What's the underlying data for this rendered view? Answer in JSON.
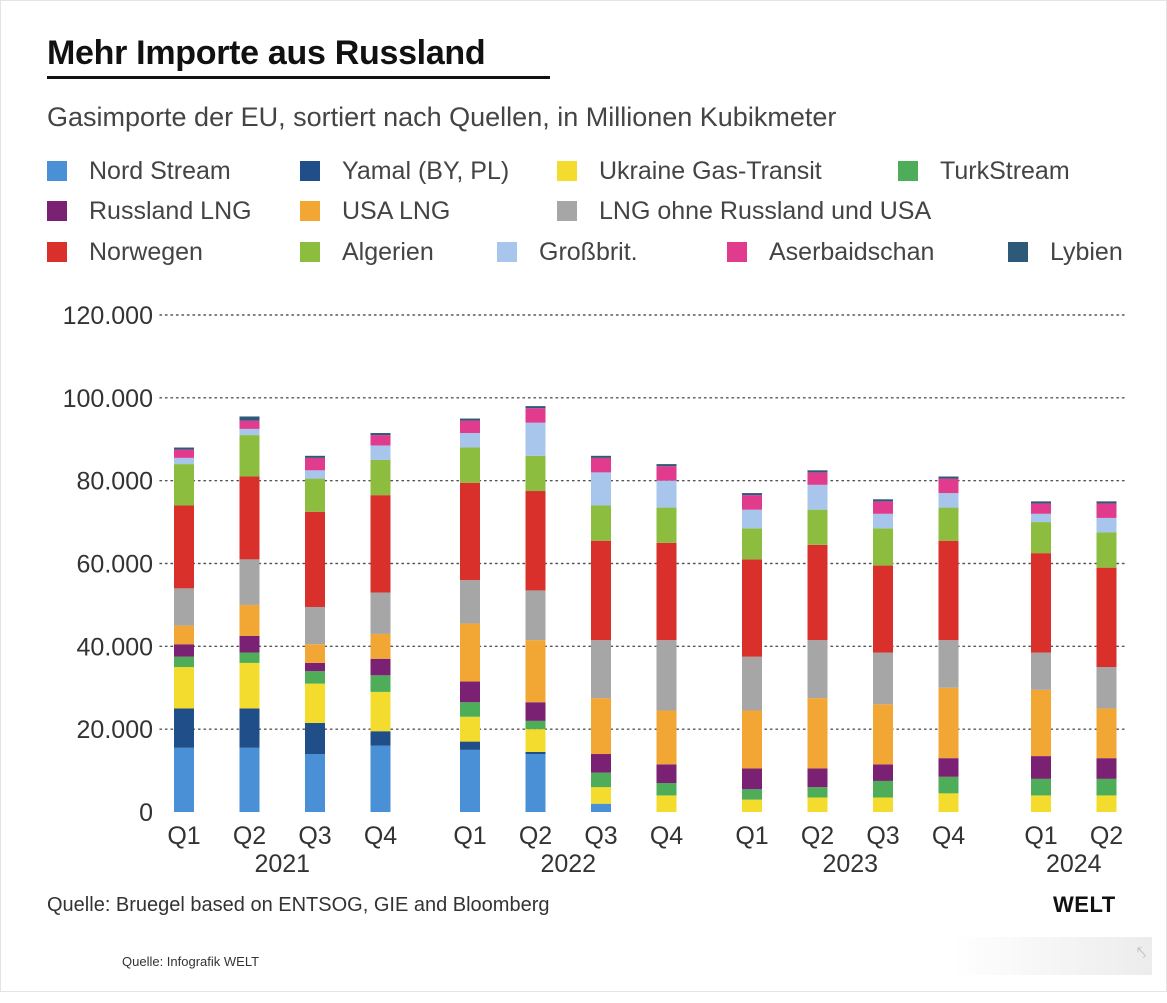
{
  "header": {
    "title": "Mehr Importe aus Russland",
    "subtitle": "Gasimporte der EU, sortiert nach Quellen, in Millionen Kubikmeter"
  },
  "legend": [
    {
      "label": "Nord Stream",
      "color": "#4a90d6"
    },
    {
      "label": "Yamal (BY, PL)",
      "color": "#1f4e88"
    },
    {
      "label": "Ukraine Gas-Transit",
      "color": "#f4dc2e"
    },
    {
      "label": "TurkStream",
      "color": "#4dad58"
    },
    {
      "label": "Russland LNG",
      "color": "#7b2173"
    },
    {
      "label": "USA LNG",
      "color": "#f2a634"
    },
    {
      "label": "LNG ohne Russland und USA",
      "color": "#a6a6a6"
    },
    {
      "label": "Norwegen",
      "color": "#d9302c"
    },
    {
      "label": "Algerien",
      "color": "#8cbd3f"
    },
    {
      "label": "Großbrit.",
      "color": "#a8c5ec"
    },
    {
      "label": "Aserbaidschan",
      "color": "#e13b8e"
    },
    {
      "label": "Lybien",
      "color": "#2d5a78"
    }
  ],
  "chart_data": {
    "type": "bar",
    "stacked": true,
    "title": "Mehr Importe aus Russland",
    "subtitle": "Gasimporte der EU, sortiert nach Quellen, in Millionen Kubikmeter",
    "xlabel": "",
    "ylabel": "",
    "ylim": [
      0,
      120000
    ],
    "y_ticks": [
      0,
      20000,
      40000,
      60000,
      80000,
      100000,
      120000
    ],
    "y_tick_labels": [
      "0",
      "20.000",
      "40.000",
      "60.000",
      "80.000",
      "100.000",
      "120.000"
    ],
    "grid": true,
    "legend_position": "top",
    "groups": [
      {
        "year": "2021",
        "quarters": [
          "Q1",
          "Q2",
          "Q3",
          "Q4"
        ]
      },
      {
        "year": "2022",
        "quarters": [
          "Q1",
          "Q2",
          "Q3",
          "Q4"
        ]
      },
      {
        "year": "2023",
        "quarters": [
          "Q1",
          "Q2",
          "Q3",
          "Q4"
        ]
      },
      {
        "year": "2024",
        "quarters": [
          "Q1",
          "Q2"
        ]
      }
    ],
    "categories": [
      "Q1 2021",
      "Q2 2021",
      "Q3 2021",
      "Q4 2021",
      "Q1 2022",
      "Q2 2022",
      "Q3 2022",
      "Q4 2022",
      "Q1 2023",
      "Q2 2023",
      "Q3 2023",
      "Q4 2023",
      "Q1 2024",
      "Q2 2024"
    ],
    "series": [
      {
        "name": "Nord Stream",
        "values": [
          15500,
          15500,
          14000,
          16000,
          15000,
          14000,
          2000,
          0,
          0,
          0,
          0,
          0,
          0,
          0
        ]
      },
      {
        "name": "Yamal (BY, PL)",
        "values": [
          9500,
          9500,
          7500,
          3500,
          2000,
          500,
          0,
          0,
          0,
          0,
          0,
          0,
          0,
          0
        ]
      },
      {
        "name": "Ukraine Gas-Transit",
        "values": [
          10000,
          11000,
          9500,
          9500,
          6000,
          5500,
          4000,
          4000,
          3000,
          3500,
          3500,
          4500,
          4000,
          4000
        ]
      },
      {
        "name": "TurkStream",
        "values": [
          2500,
          2500,
          3000,
          4000,
          3500,
          2000,
          3500,
          3000,
          2500,
          2500,
          4000,
          4000,
          4000,
          4000
        ]
      },
      {
        "name": "Russland LNG",
        "values": [
          3000,
          4000,
          2000,
          4000,
          5000,
          4500,
          4500,
          4500,
          5000,
          4500,
          4000,
          4500,
          5500,
          5000
        ]
      },
      {
        "name": "USA LNG",
        "values": [
          4500,
          7500,
          4500,
          6000,
          14000,
          15000,
          13500,
          13000,
          14000,
          17000,
          14500,
          17000,
          16000,
          12000
        ]
      },
      {
        "name": "LNG ohne Russland und USA",
        "values": [
          9000,
          11000,
          9000,
          10000,
          10500,
          12000,
          14000,
          17000,
          13000,
          14000,
          12500,
          11500,
          9000,
          10000
        ]
      },
      {
        "name": "Norwegen",
        "values": [
          20000,
          20000,
          23000,
          23500,
          23500,
          24000,
          24000,
          23500,
          23500,
          23000,
          21000,
          24000,
          24000,
          24000
        ]
      },
      {
        "name": "Algerien",
        "values": [
          10000,
          10000,
          8000,
          8500,
          8500,
          8500,
          8500,
          8500,
          7500,
          8500,
          9000,
          8000,
          7500,
          8500
        ]
      },
      {
        "name": "Großbrit.",
        "values": [
          1500,
          1500,
          2000,
          3500,
          3500,
          8000,
          8000,
          6500,
          4500,
          6000,
          3500,
          3500,
          2000,
          3500
        ]
      },
      {
        "name": "Aserbaidschan",
        "values": [
          2000,
          2000,
          3000,
          2500,
          3000,
          3500,
          3500,
          3500,
          3500,
          3000,
          3000,
          3500,
          2500,
          3500
        ]
      },
      {
        "name": "Lybien",
        "values": [
          500,
          1000,
          500,
          500,
          500,
          500,
          500,
          500,
          500,
          500,
          500,
          500,
          500,
          500
        ]
      }
    ],
    "source_note": "Quelle: Bruegel based on ENTSOG, GIE and Bloomberg"
  },
  "footer": {
    "source": "Quelle: Bruegel based on ENTSOG, GIE and Bloomberg",
    "brand": "WELT",
    "credit": "Quelle: Infografik WELT"
  }
}
